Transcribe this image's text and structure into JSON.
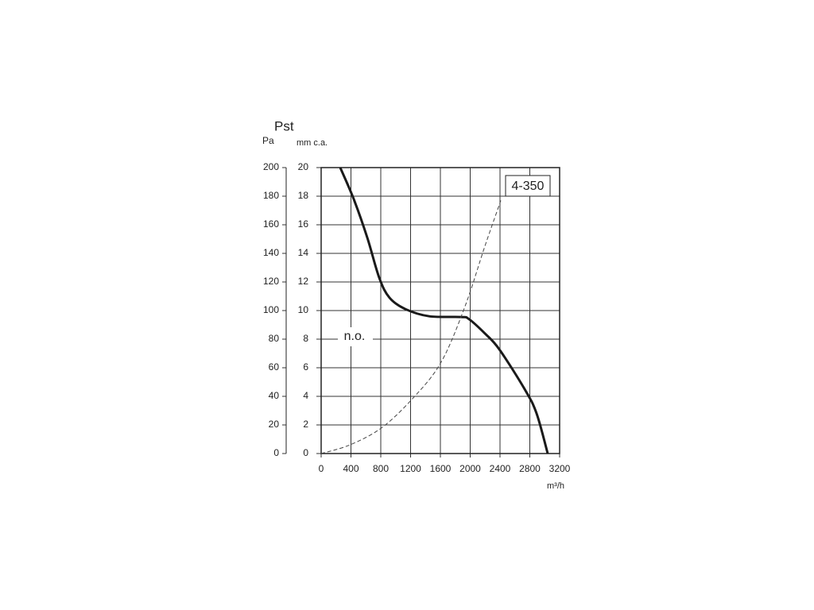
{
  "chart_data": {
    "type": "line",
    "title": "Pst",
    "y2_label": "Pa",
    "y_label": "mm c.a.",
    "x_label": "m³/h",
    "xlim": [
      0,
      3200
    ],
    "xticks": [
      0,
      400,
      800,
      1200,
      1600,
      2000,
      2400,
      2800,
      3200
    ],
    "ylim": [
      0,
      20
    ],
    "yticks": [
      0,
      2,
      4,
      6,
      8,
      10,
      12,
      14,
      16,
      18,
      20
    ],
    "y2lim": [
      0,
      200
    ],
    "y2ticks": [
      0,
      20,
      40,
      60,
      80,
      100,
      120,
      140,
      160,
      180,
      200
    ],
    "grid": true,
    "series": [
      {
        "color": "#1a1a1a",
        "dashed": false,
        "x": [
          256,
          437,
          619,
          779,
          917,
          1131,
          1451,
          1877,
          1984,
          2197,
          2389,
          2731,
          2891,
          3040
        ],
        "values": [
          20,
          17.8,
          15.1,
          12.3,
          10.9,
          10.1,
          9.6,
          9.55,
          9.4,
          8.4,
          7.3,
          4.5,
          2.8,
          0
        ]
      },
      {
        "color": "#444444",
        "dashed": true,
        "x": [
          0,
          384,
          811,
          1237,
          1611,
          1931,
          2197,
          2411
        ],
        "values": [
          0,
          0.6,
          1.8,
          3.9,
          6.4,
          10.3,
          14.5,
          17.7
        ]
      }
    ],
    "annotations": [
      "4-350",
      "n.o."
    ]
  }
}
